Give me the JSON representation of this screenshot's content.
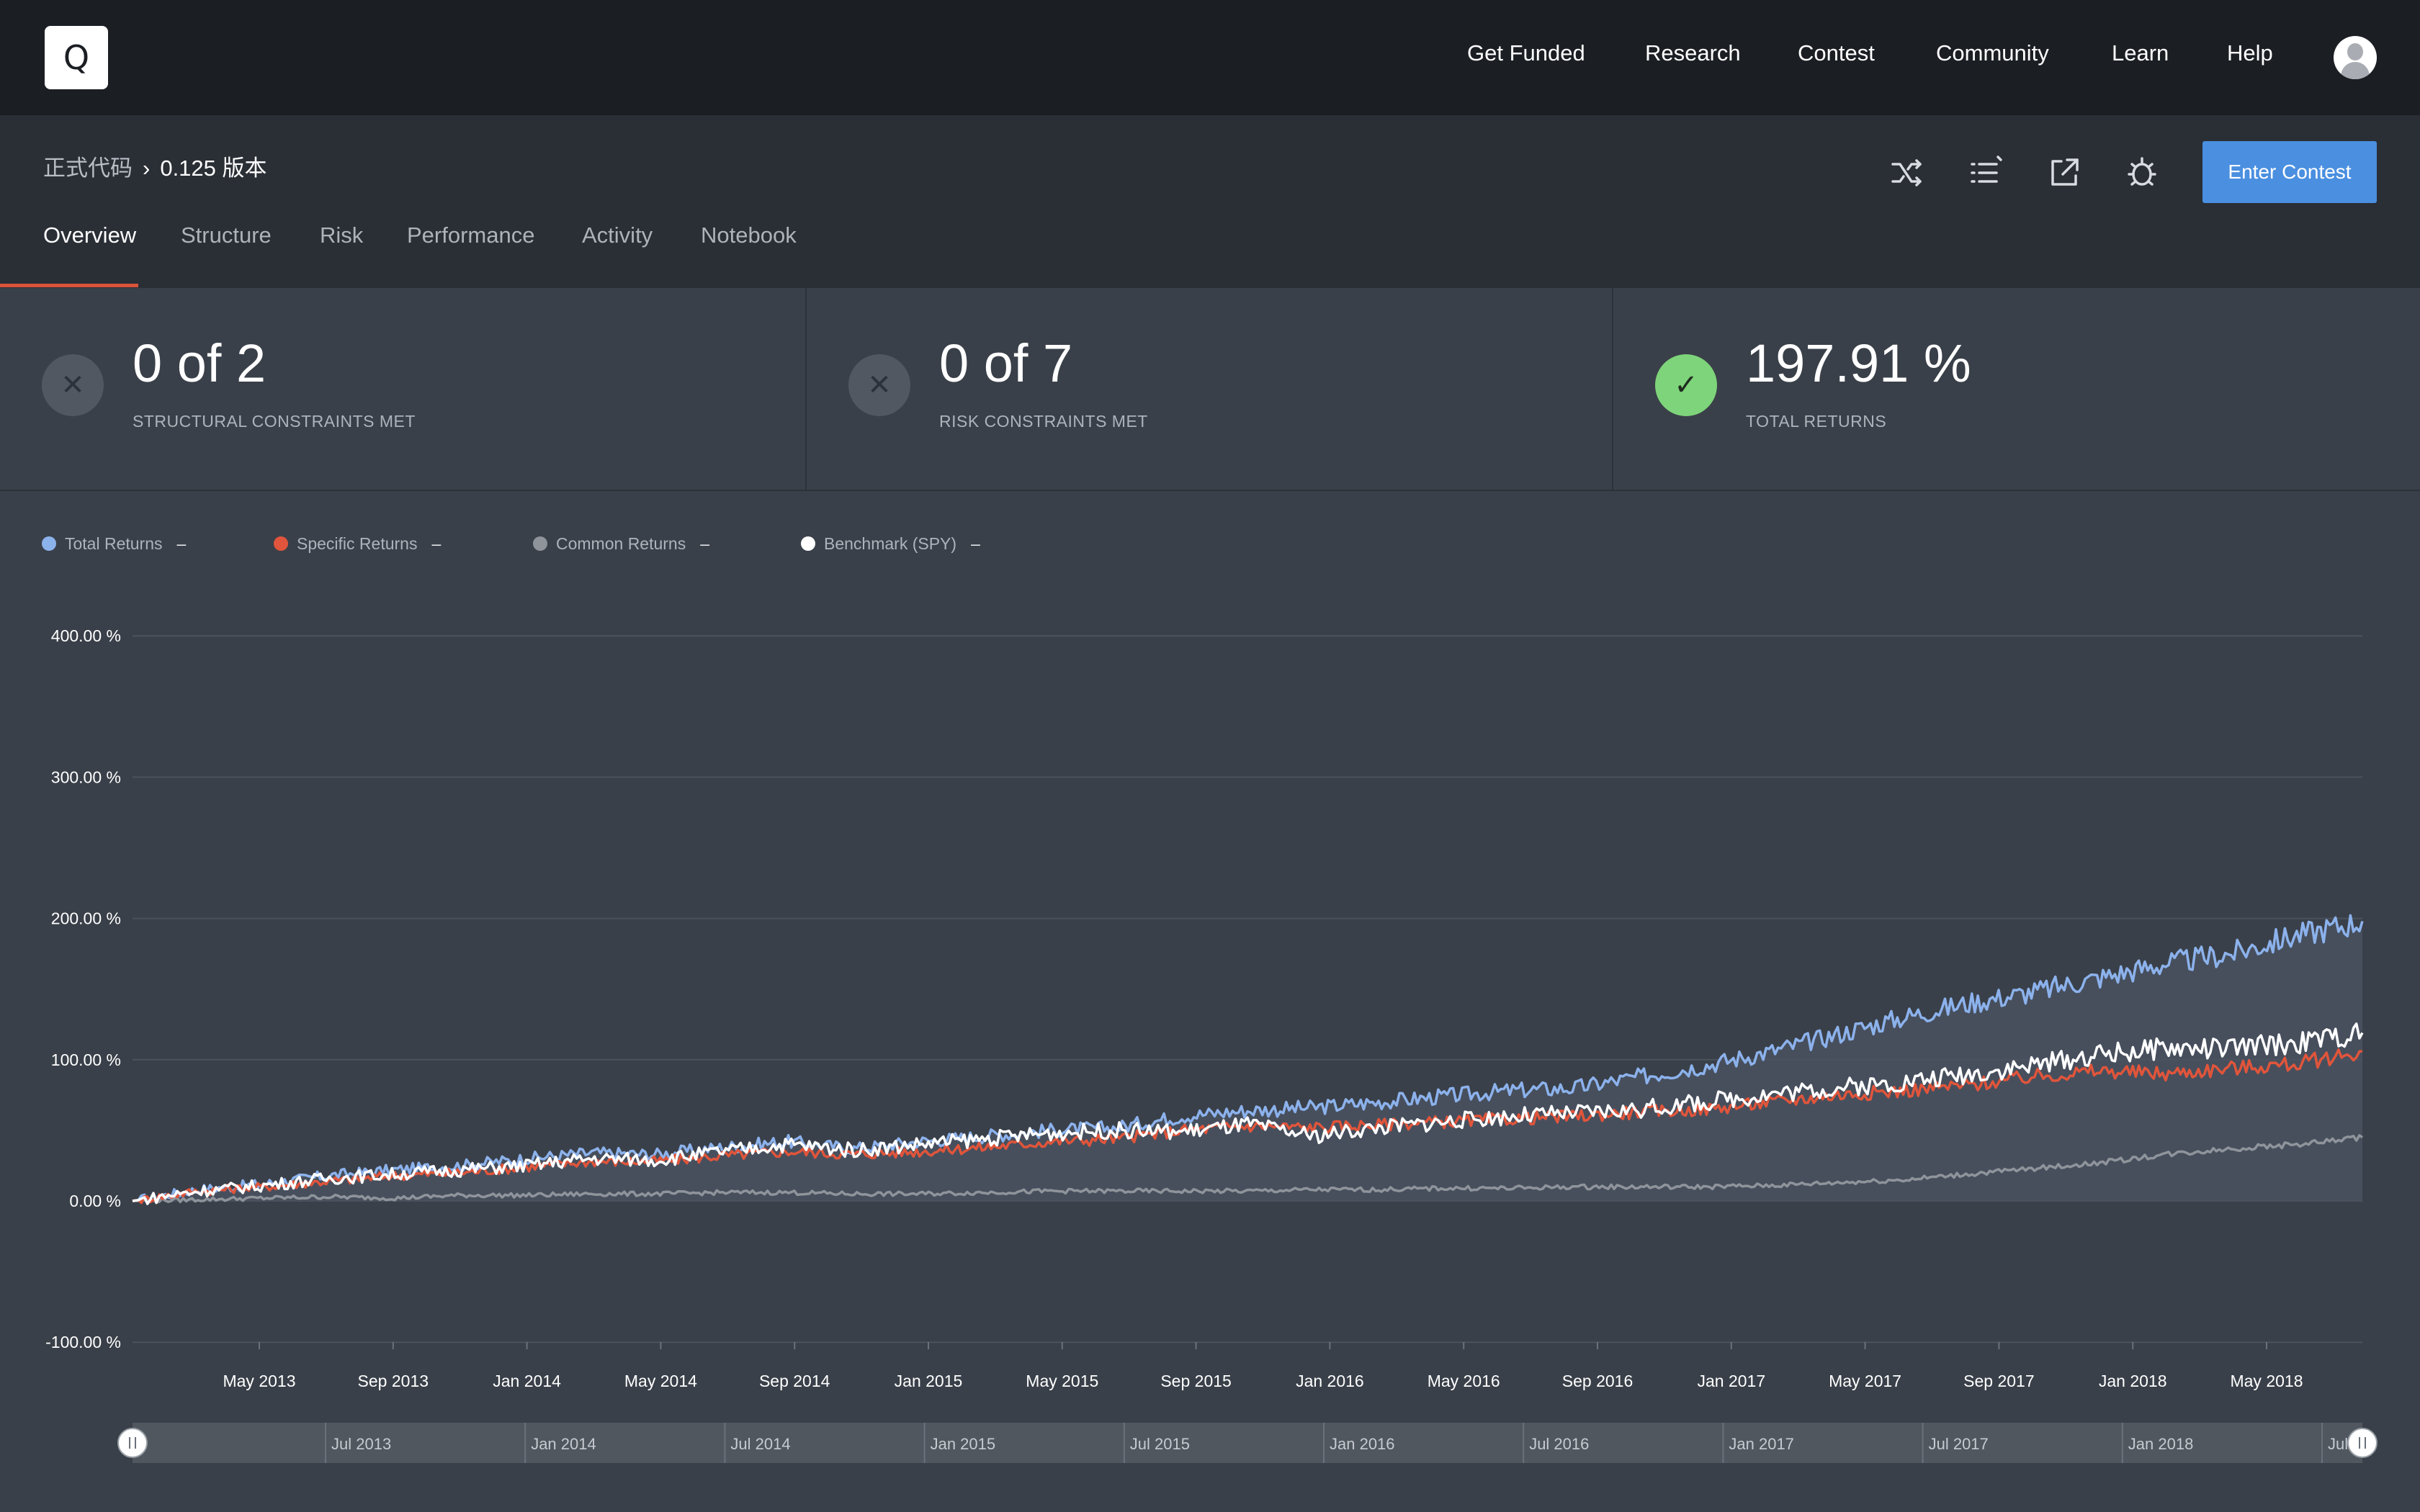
{
  "nav": {
    "logo_letter": "Q",
    "links": [
      "Get Funded",
      "Research",
      "Contest",
      "Community",
      "Learn",
      "Help"
    ]
  },
  "breadcrumb": {
    "parent": "正式代码",
    "current": "0.125 版本"
  },
  "toolbar": {
    "enter_contest": "Enter Contest"
  },
  "tabs": [
    "Overview",
    "Structure",
    "Risk",
    "Performance",
    "Activity",
    "Notebook"
  ],
  "active_tab": "Overview",
  "kpis": [
    {
      "value": "0 of 2",
      "label": "STRUCTURAL CONSTRAINTS MET",
      "status": "fail"
    },
    {
      "value": "0 of 7",
      "label": "RISK CONSTRAINTS MET",
      "status": "fail"
    },
    {
      "value": "197.91 %",
      "label": "TOTAL RETURNS",
      "status": "pass"
    }
  ],
  "colors": {
    "accent": "#4a8fe0",
    "tab_underline": "#d9533b",
    "total": "#8cb2ec",
    "specific": "#e0553b",
    "common": "#8f949b",
    "benchmark": "#ffffff"
  },
  "chart_data": {
    "type": "line",
    "xlabel": "",
    "ylabel": "",
    "ylim": [
      -100,
      400
    ],
    "yticks": [
      "400.00 %",
      "300.00 %",
      "200.00 %",
      "100.00 %",
      "0.00 %",
      "-100.00 %"
    ],
    "xticks": [
      "May 2013",
      "Sep 2013",
      "Jan 2014",
      "May 2014",
      "Sep 2014",
      "Jan 2015",
      "May 2015",
      "Sep 2015",
      "Jan 2016",
      "May 2016",
      "Sep 2016",
      "Jan 2017",
      "May 2017",
      "Sep 2017",
      "Jan 2018",
      "May 2018"
    ],
    "navigator_ticks": [
      "Jul 2013",
      "Jan 2014",
      "Jul 2014",
      "Jan 2015",
      "Jul 2015",
      "Jan 2016",
      "Jul 2016",
      "Jan 2017",
      "Jul 2017",
      "Jan 2018",
      "Jul"
    ],
    "x": [
      "2013-01",
      "2013-03",
      "2013-05",
      "2013-07",
      "2013-09",
      "2013-11",
      "2014-01",
      "2014-03",
      "2014-05",
      "2014-07",
      "2014-09",
      "2014-11",
      "2015-01",
      "2015-03",
      "2015-05",
      "2015-07",
      "2015-09",
      "2015-11",
      "2016-01",
      "2016-03",
      "2016-05",
      "2016-07",
      "2016-09",
      "2016-11",
      "2017-01",
      "2017-03",
      "2017-05",
      "2017-07",
      "2017-09",
      "2017-11",
      "2018-01",
      "2018-03",
      "2018-05",
      "2018-07",
      "2018-09"
    ],
    "series": [
      {
        "name": "Total Returns",
        "color": "#8cb2ec",
        "filled": true,
        "values": [
          0,
          8,
          12,
          18,
          22,
          25,
          30,
          34,
          33,
          38,
          42,
          37,
          42,
          46,
          50,
          52,
          60,
          64,
          66,
          70,
          74,
          78,
          80,
          88,
          96,
          106,
          118,
          130,
          140,
          148,
          158,
          168,
          175,
          188,
          198
        ]
      },
      {
        "name": "Specific Returns",
        "color": "#e0553b",
        "values": [
          0,
          7,
          10,
          14,
          18,
          20,
          24,
          28,
          28,
          32,
          35,
          33,
          35,
          38,
          42,
          44,
          50,
          53,
          52,
          54,
          56,
          58,
          60,
          63,
          65,
          70,
          75,
          78,
          82,
          88,
          92,
          90,
          94,
          97,
          106
        ]
      },
      {
        "name": "Common Returns",
        "color": "#8f949b",
        "values": [
          0,
          1,
          2,
          3,
          2,
          4,
          4,
          5,
          5,
          6,
          6,
          5,
          5,
          6,
          7,
          7,
          7,
          7,
          8,
          8,
          9,
          9,
          10,
          10,
          10,
          11,
          13,
          15,
          19,
          23,
          27,
          33,
          37,
          40,
          45
        ]
      },
      {
        "name": "Benchmark (SPY)",
        "color": "#ffffff",
        "values": [
          0,
          7,
          11,
          16,
          19,
          22,
          25,
          30,
          29,
          35,
          40,
          36,
          40,
          44,
          48,
          50,
          49,
          54,
          46,
          52,
          56,
          60,
          62,
          65,
          70,
          76,
          80,
          84,
          90,
          96,
          104,
          108,
          108,
          112,
          119
        ]
      }
    ]
  }
}
